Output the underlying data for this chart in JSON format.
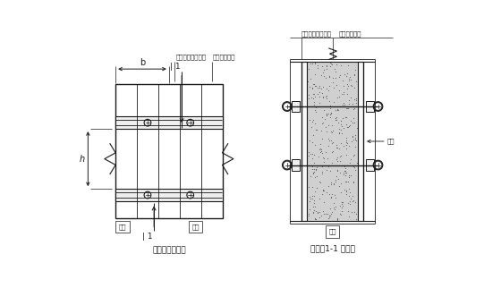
{
  "bg_color": "#ffffff",
  "line_color": "#1a1a1a",
  "title1": "墙模板正立面图",
  "title2": "墙模板1-1 剖面图",
  "label_b": "b",
  "label_h": "h",
  "label_11": "| 1",
  "label_mianban1": "面板",
  "label_luoshuan1": "螺栓",
  "label_mianban2": "面板",
  "label_luoshuan2": "螺栓",
  "label_zhujuan_left": "主楞（圆形钢管）",
  "label_cijuan_left": "次楞（方木）",
  "label_zhujuan_right": "主楞（圆形钢管）",
  "label_cijuan_right": "次楞（方木）",
  "font_size_title": 6.5,
  "font_size_label": 5.0,
  "font_size_dim": 7.0
}
